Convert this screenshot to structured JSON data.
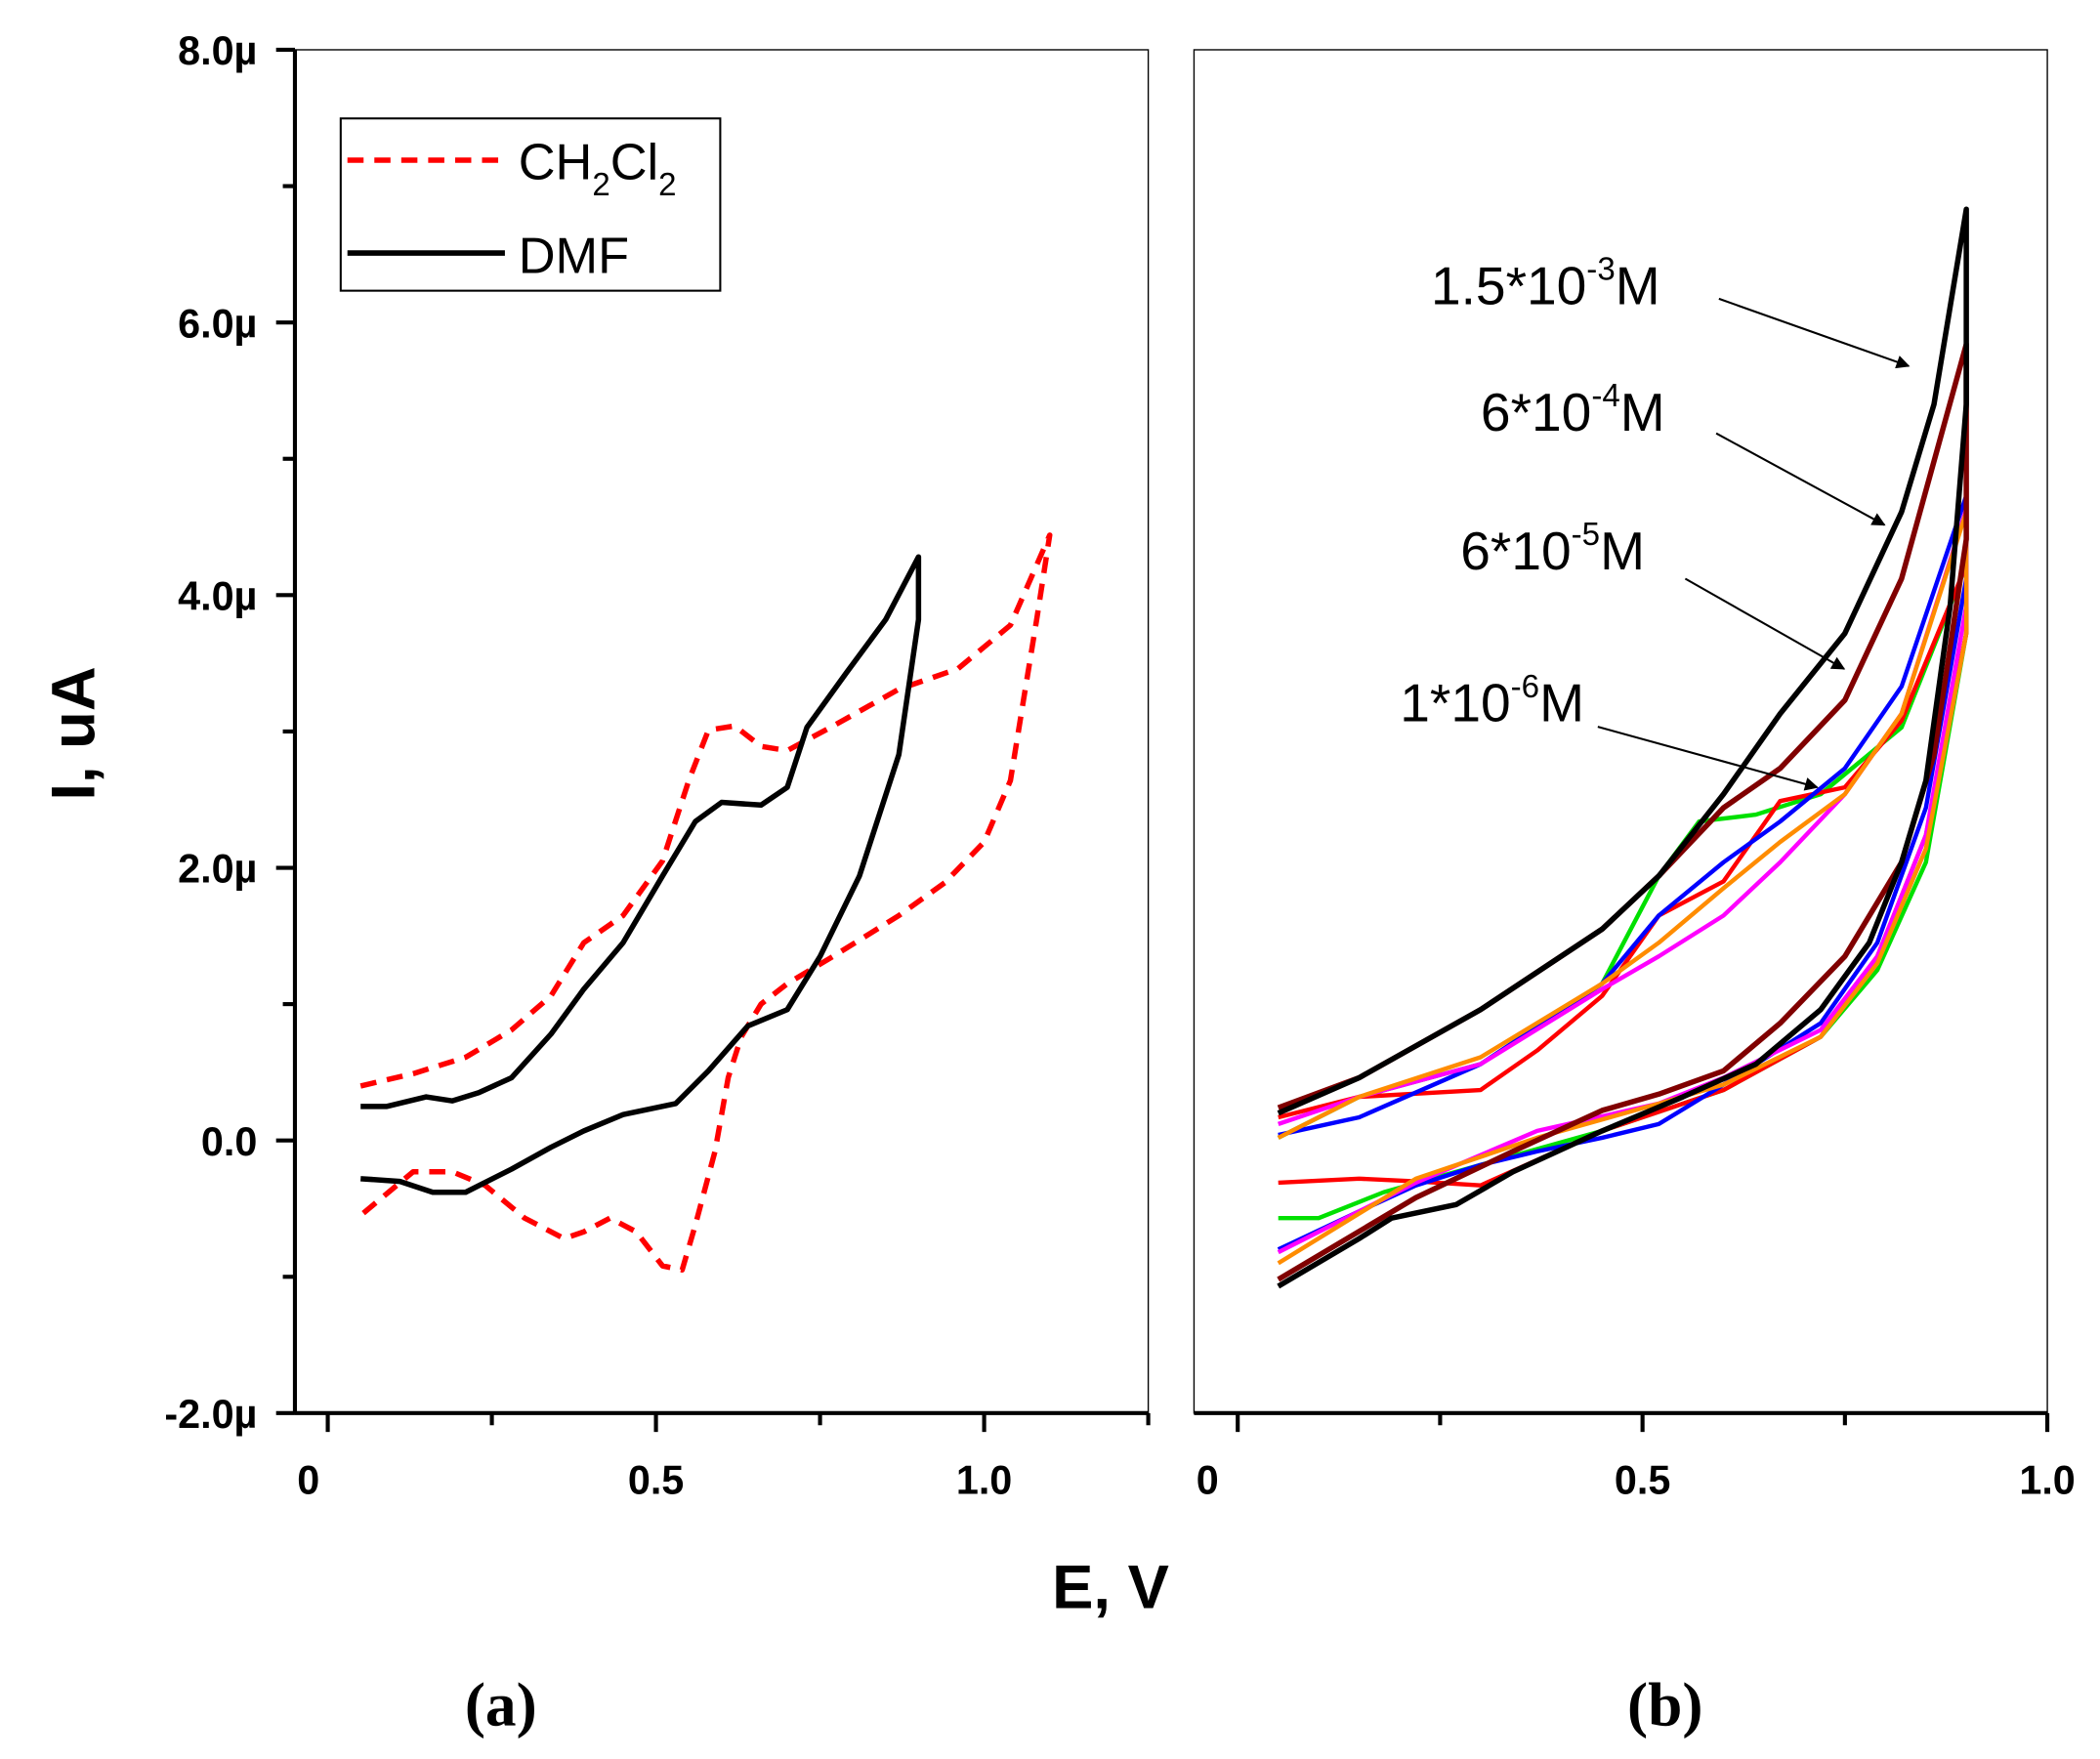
{
  "chart_data": [
    {
      "type": "line",
      "panel_label": "(a)",
      "xlabel": "E, V",
      "ylabel": "I, uA",
      "xlim": [
        -0.05,
        1.25
      ],
      "ylim": [
        -2.0,
        8.0
      ],
      "yticks": [
        {
          "v": 8,
          "label": "8.0µ"
        },
        {
          "v": 6,
          "label": "6.0µ"
        },
        {
          "v": 4,
          "label": "4.0µ"
        },
        {
          "v": 2,
          "label": "2.0µ"
        },
        {
          "v": 0,
          "label": "0.0"
        },
        {
          "v": -2,
          "label": "-2.0µ"
        }
      ],
      "xticks": [
        {
          "v": 0,
          "label": "0"
        },
        {
          "v": 0.5,
          "label": "0.5"
        },
        {
          "v": 1.0,
          "label": "1.0"
        }
      ],
      "legend": {
        "placement": "top-left",
        "entries": [
          {
            "name": "CH2Cl2",
            "main": "CH",
            "sub1": "2",
            "mid": "Cl",
            "sub2": "2"
          },
          {
            "name": "DMF",
            "main": "DMF"
          }
        ]
      },
      "series": [
        {
          "name": "CH2Cl2",
          "color": "#ff0000",
          "dashed": true,
          "points": [
            [
              0.05,
              0.4
            ],
            [
              0.13,
              0.49
            ],
            [
              0.21,
              0.61
            ],
            [
              0.28,
              0.81
            ],
            [
              0.34,
              1.06
            ],
            [
              0.39,
              1.45
            ],
            [
              0.45,
              1.65
            ],
            [
              0.51,
              2.05
            ],
            [
              0.55,
              2.64
            ],
            [
              0.58,
              3.01
            ],
            [
              0.62,
              3.04
            ],
            [
              0.66,
              2.89
            ],
            [
              0.7,
              2.86
            ],
            [
              0.77,
              3.04
            ],
            [
              0.87,
              3.31
            ],
            [
              0.96,
              3.46
            ],
            [
              1.04,
              3.78
            ],
            [
              1.1,
              4.44
            ],
            [
              1.08,
              3.82
            ],
            [
              1.06,
              3.23
            ],
            [
              1.04,
              2.64
            ],
            [
              1.0,
              2.19
            ],
            [
              0.94,
              1.89
            ],
            [
              0.87,
              1.65
            ],
            [
              0.77,
              1.35
            ],
            [
              0.7,
              1.15
            ],
            [
              0.66,
              1.0
            ],
            [
              0.63,
              0.76
            ],
            [
              0.61,
              0.46
            ],
            [
              0.59,
              -0.08
            ],
            [
              0.56,
              -0.62
            ],
            [
              0.54,
              -0.95
            ],
            [
              0.51,
              -0.92
            ],
            [
              0.47,
              -0.67
            ],
            [
              0.43,
              -0.57
            ],
            [
              0.39,
              -0.67
            ],
            [
              0.36,
              -0.72
            ],
            [
              0.3,
              -0.57
            ],
            [
              0.24,
              -0.33
            ],
            [
              0.19,
              -0.23
            ],
            [
              0.13,
              -0.23
            ],
            [
              0.05,
              -0.55
            ]
          ]
        },
        {
          "name": "DMF",
          "color": "#000000",
          "dashed": false,
          "points": [
            [
              0.05,
              0.25
            ],
            [
              0.09,
              0.25
            ],
            [
              0.15,
              0.32
            ],
            [
              0.19,
              0.29
            ],
            [
              0.23,
              0.35
            ],
            [
              0.28,
              0.46
            ],
            [
              0.34,
              0.78
            ],
            [
              0.39,
              1.11
            ],
            [
              0.45,
              1.45
            ],
            [
              0.51,
              1.94
            ],
            [
              0.56,
              2.34
            ],
            [
              0.6,
              2.48
            ],
            [
              0.66,
              2.46
            ],
            [
              0.7,
              2.59
            ],
            [
              0.73,
              3.03
            ],
            [
              0.79,
              3.43
            ],
            [
              0.85,
              3.82
            ],
            [
              0.9,
              4.28
            ],
            [
              0.9,
              3.82
            ],
            [
              0.87,
              2.83
            ],
            [
              0.81,
              1.94
            ],
            [
              0.75,
              1.35
            ],
            [
              0.7,
              0.96
            ],
            [
              0.64,
              0.84
            ],
            [
              0.58,
              0.51
            ],
            [
              0.53,
              0.27
            ],
            [
              0.45,
              0.19
            ],
            [
              0.39,
              0.07
            ],
            [
              0.34,
              -0.05
            ],
            [
              0.28,
              -0.21
            ],
            [
              0.21,
              -0.38
            ],
            [
              0.16,
              -0.38
            ],
            [
              0.11,
              -0.3
            ],
            [
              0.05,
              -0.28
            ]
          ]
        }
      ]
    },
    {
      "type": "line",
      "panel_label": "(b)",
      "xlim": [
        -0.054,
        1.0
      ],
      "ylim": [
        -2.0,
        8.0
      ],
      "xticks": [
        {
          "v": 0,
          "label": "0"
        },
        {
          "v": 0.5,
          "label": "0.5"
        },
        {
          "v": 1.0,
          "label": "1.0"
        }
      ],
      "annotations": [
        {
          "mantissa": "1.5*10",
          "exp": "-3",
          "unit": "M",
          "target_series": "1.5*10^-3 M"
        },
        {
          "mantissa": "6*10",
          "exp": "-4",
          "unit": "M",
          "target_series": "6*10^-4 M"
        },
        {
          "mantissa": "6*10",
          "exp": "-5",
          "unit": "M",
          "target_series": "6*10^-5 M"
        },
        {
          "mantissa": "1*10",
          "exp": "-6",
          "unit": "M",
          "target_series": "1*10^-6 M"
        }
      ],
      "series": [
        {
          "name": "green",
          "color": "#00e000",
          "points": [
            [
              0.05,
              0.02
            ],
            [
              0.15,
              0.32
            ],
            [
              0.3,
              0.56
            ],
            [
              0.45,
              1.15
            ],
            [
              0.52,
              1.94
            ],
            [
              0.57,
              2.34
            ],
            [
              0.64,
              2.39
            ],
            [
              0.72,
              2.54
            ],
            [
              0.82,
              3.03
            ],
            [
              0.9,
              4.22
            ],
            [
              0.9,
              3.72
            ],
            [
              0.85,
              2.04
            ],
            [
              0.79,
              1.25
            ],
            [
              0.72,
              0.76
            ],
            [
              0.6,
              0.37
            ],
            [
              0.45,
              0.07
            ],
            [
              0.3,
              -0.18
            ],
            [
              0.18,
              -0.38
            ],
            [
              0.1,
              -0.57
            ],
            [
              0.05,
              -0.57
            ]
          ]
        },
        {
          "name": "1*10^-6 M",
          "color": "#ff0000",
          "points": [
            [
              0.05,
              0.17
            ],
            [
              0.15,
              0.32
            ],
            [
              0.3,
              0.37
            ],
            [
              0.37,
              0.66
            ],
            [
              0.45,
              1.06
            ],
            [
              0.52,
              1.65
            ],
            [
              0.6,
              1.9
            ],
            [
              0.67,
              2.49
            ],
            [
              0.75,
              2.59
            ],
            [
              0.82,
              3.08
            ],
            [
              0.9,
              4.22
            ],
            [
              0.9,
              3.72
            ],
            [
              0.85,
              2.24
            ],
            [
              0.79,
              1.35
            ],
            [
              0.72,
              0.76
            ],
            [
              0.6,
              0.37
            ],
            [
              0.45,
              0.07
            ],
            [
              0.3,
              -0.33
            ],
            [
              0.22,
              -0.3
            ],
            [
              0.15,
              -0.28
            ],
            [
              0.05,
              -0.31
            ]
          ]
        },
        {
          "name": "6*10^-5 M",
          "color": "#0000ff",
          "points": [
            [
              0.05,
              0.04
            ],
            [
              0.15,
              0.17
            ],
            [
              0.3,
              0.56
            ],
            [
              0.45,
              1.15
            ],
            [
              0.52,
              1.65
            ],
            [
              0.6,
              2.04
            ],
            [
              0.67,
              2.34
            ],
            [
              0.75,
              2.73
            ],
            [
              0.82,
              3.33
            ],
            [
              0.9,
              4.73
            ],
            [
              0.9,
              4.12
            ],
            [
              0.85,
              2.44
            ],
            [
              0.79,
              1.45
            ],
            [
              0.72,
              0.86
            ],
            [
              0.6,
              0.41
            ],
            [
              0.52,
              0.12
            ],
            [
              0.45,
              0.02
            ],
            [
              0.37,
              -0.08
            ],
            [
              0.3,
              -0.18
            ],
            [
              0.22,
              -0.33
            ],
            [
              0.15,
              -0.52
            ],
            [
              0.05,
              -0.8
            ]
          ]
        },
        {
          "name": "magenta",
          "color": "#ff00ff",
          "points": [
            [
              0.05,
              0.12
            ],
            [
              0.15,
              0.32
            ],
            [
              0.3,
              0.56
            ],
            [
              0.45,
              1.11
            ],
            [
              0.52,
              1.35
            ],
            [
              0.6,
              1.65
            ],
            [
              0.67,
              2.04
            ],
            [
              0.75,
              2.54
            ],
            [
              0.82,
              3.13
            ],
            [
              0.9,
              4.63
            ],
            [
              0.9,
              3.92
            ],
            [
              0.85,
              2.24
            ],
            [
              0.79,
              1.35
            ],
            [
              0.72,
              0.81
            ],
            [
              0.6,
              0.46
            ],
            [
              0.52,
              0.27
            ],
            [
              0.37,
              0.07
            ],
            [
              0.22,
              -0.31
            ],
            [
              0.05,
              -0.82
            ]
          ]
        },
        {
          "name": "orange",
          "color": "#ff8c00",
          "points": [
            [
              0.05,
              0.02
            ],
            [
              0.15,
              0.32
            ],
            [
              0.3,
              0.61
            ],
            [
              0.45,
              1.15
            ],
            [
              0.52,
              1.45
            ],
            [
              0.6,
              1.85
            ],
            [
              0.67,
              2.19
            ],
            [
              0.75,
              2.54
            ],
            [
              0.82,
              3.13
            ],
            [
              0.9,
              4.61
            ],
            [
              0.9,
              3.72
            ],
            [
              0.85,
              2.14
            ],
            [
              0.79,
              1.3
            ],
            [
              0.72,
              0.76
            ],
            [
              0.6,
              0.41
            ],
            [
              0.52,
              0.27
            ],
            [
              0.37,
              0.02
            ],
            [
              0.22,
              -0.28
            ],
            [
              0.05,
              -0.9
            ]
          ]
        },
        {
          "name": "6*10^-4 M",
          "color": "#800000",
          "points": [
            [
              0.05,
              0.24
            ],
            [
              0.15,
              0.46
            ],
            [
              0.3,
              0.96
            ],
            [
              0.45,
              1.55
            ],
            [
              0.52,
              1.94
            ],
            [
              0.6,
              2.44
            ],
            [
              0.67,
              2.73
            ],
            [
              0.75,
              3.23
            ],
            [
              0.82,
              4.12
            ],
            [
              0.9,
              5.84
            ],
            [
              0.9,
              4.41
            ],
            [
              0.86,
              2.83
            ],
            [
              0.82,
              2.04
            ],
            [
              0.75,
              1.35
            ],
            [
              0.67,
              0.86
            ],
            [
              0.6,
              0.51
            ],
            [
              0.52,
              0.34
            ],
            [
              0.45,
              0.22
            ],
            [
              0.34,
              -0.08
            ],
            [
              0.22,
              -0.42
            ],
            [
              0.05,
              -1.02
            ]
          ]
        },
        {
          "name": "1.5*10^-3 M",
          "color": "#000000",
          "points": [
            [
              0.05,
              0.2
            ],
            [
              0.15,
              0.46
            ],
            [
              0.3,
              0.96
            ],
            [
              0.45,
              1.55
            ],
            [
              0.52,
              1.94
            ],
            [
              0.6,
              2.54
            ],
            [
              0.67,
              3.13
            ],
            [
              0.75,
              3.72
            ],
            [
              0.82,
              4.61
            ],
            [
              0.86,
              5.4
            ],
            [
              0.9,
              6.83
            ],
            [
              0.9,
              5.4
            ],
            [
              0.88,
              3.92
            ],
            [
              0.85,
              2.64
            ],
            [
              0.82,
              2.04
            ],
            [
              0.78,
              1.45
            ],
            [
              0.72,
              0.96
            ],
            [
              0.64,
              0.56
            ],
            [
              0.55,
              0.32
            ],
            [
              0.45,
              0.07
            ],
            [
              0.34,
              -0.23
            ],
            [
              0.27,
              -0.47
            ],
            [
              0.19,
              -0.57
            ],
            [
              0.15,
              -0.72
            ],
            [
              0.05,
              -1.07
            ]
          ]
        }
      ]
    }
  ]
}
